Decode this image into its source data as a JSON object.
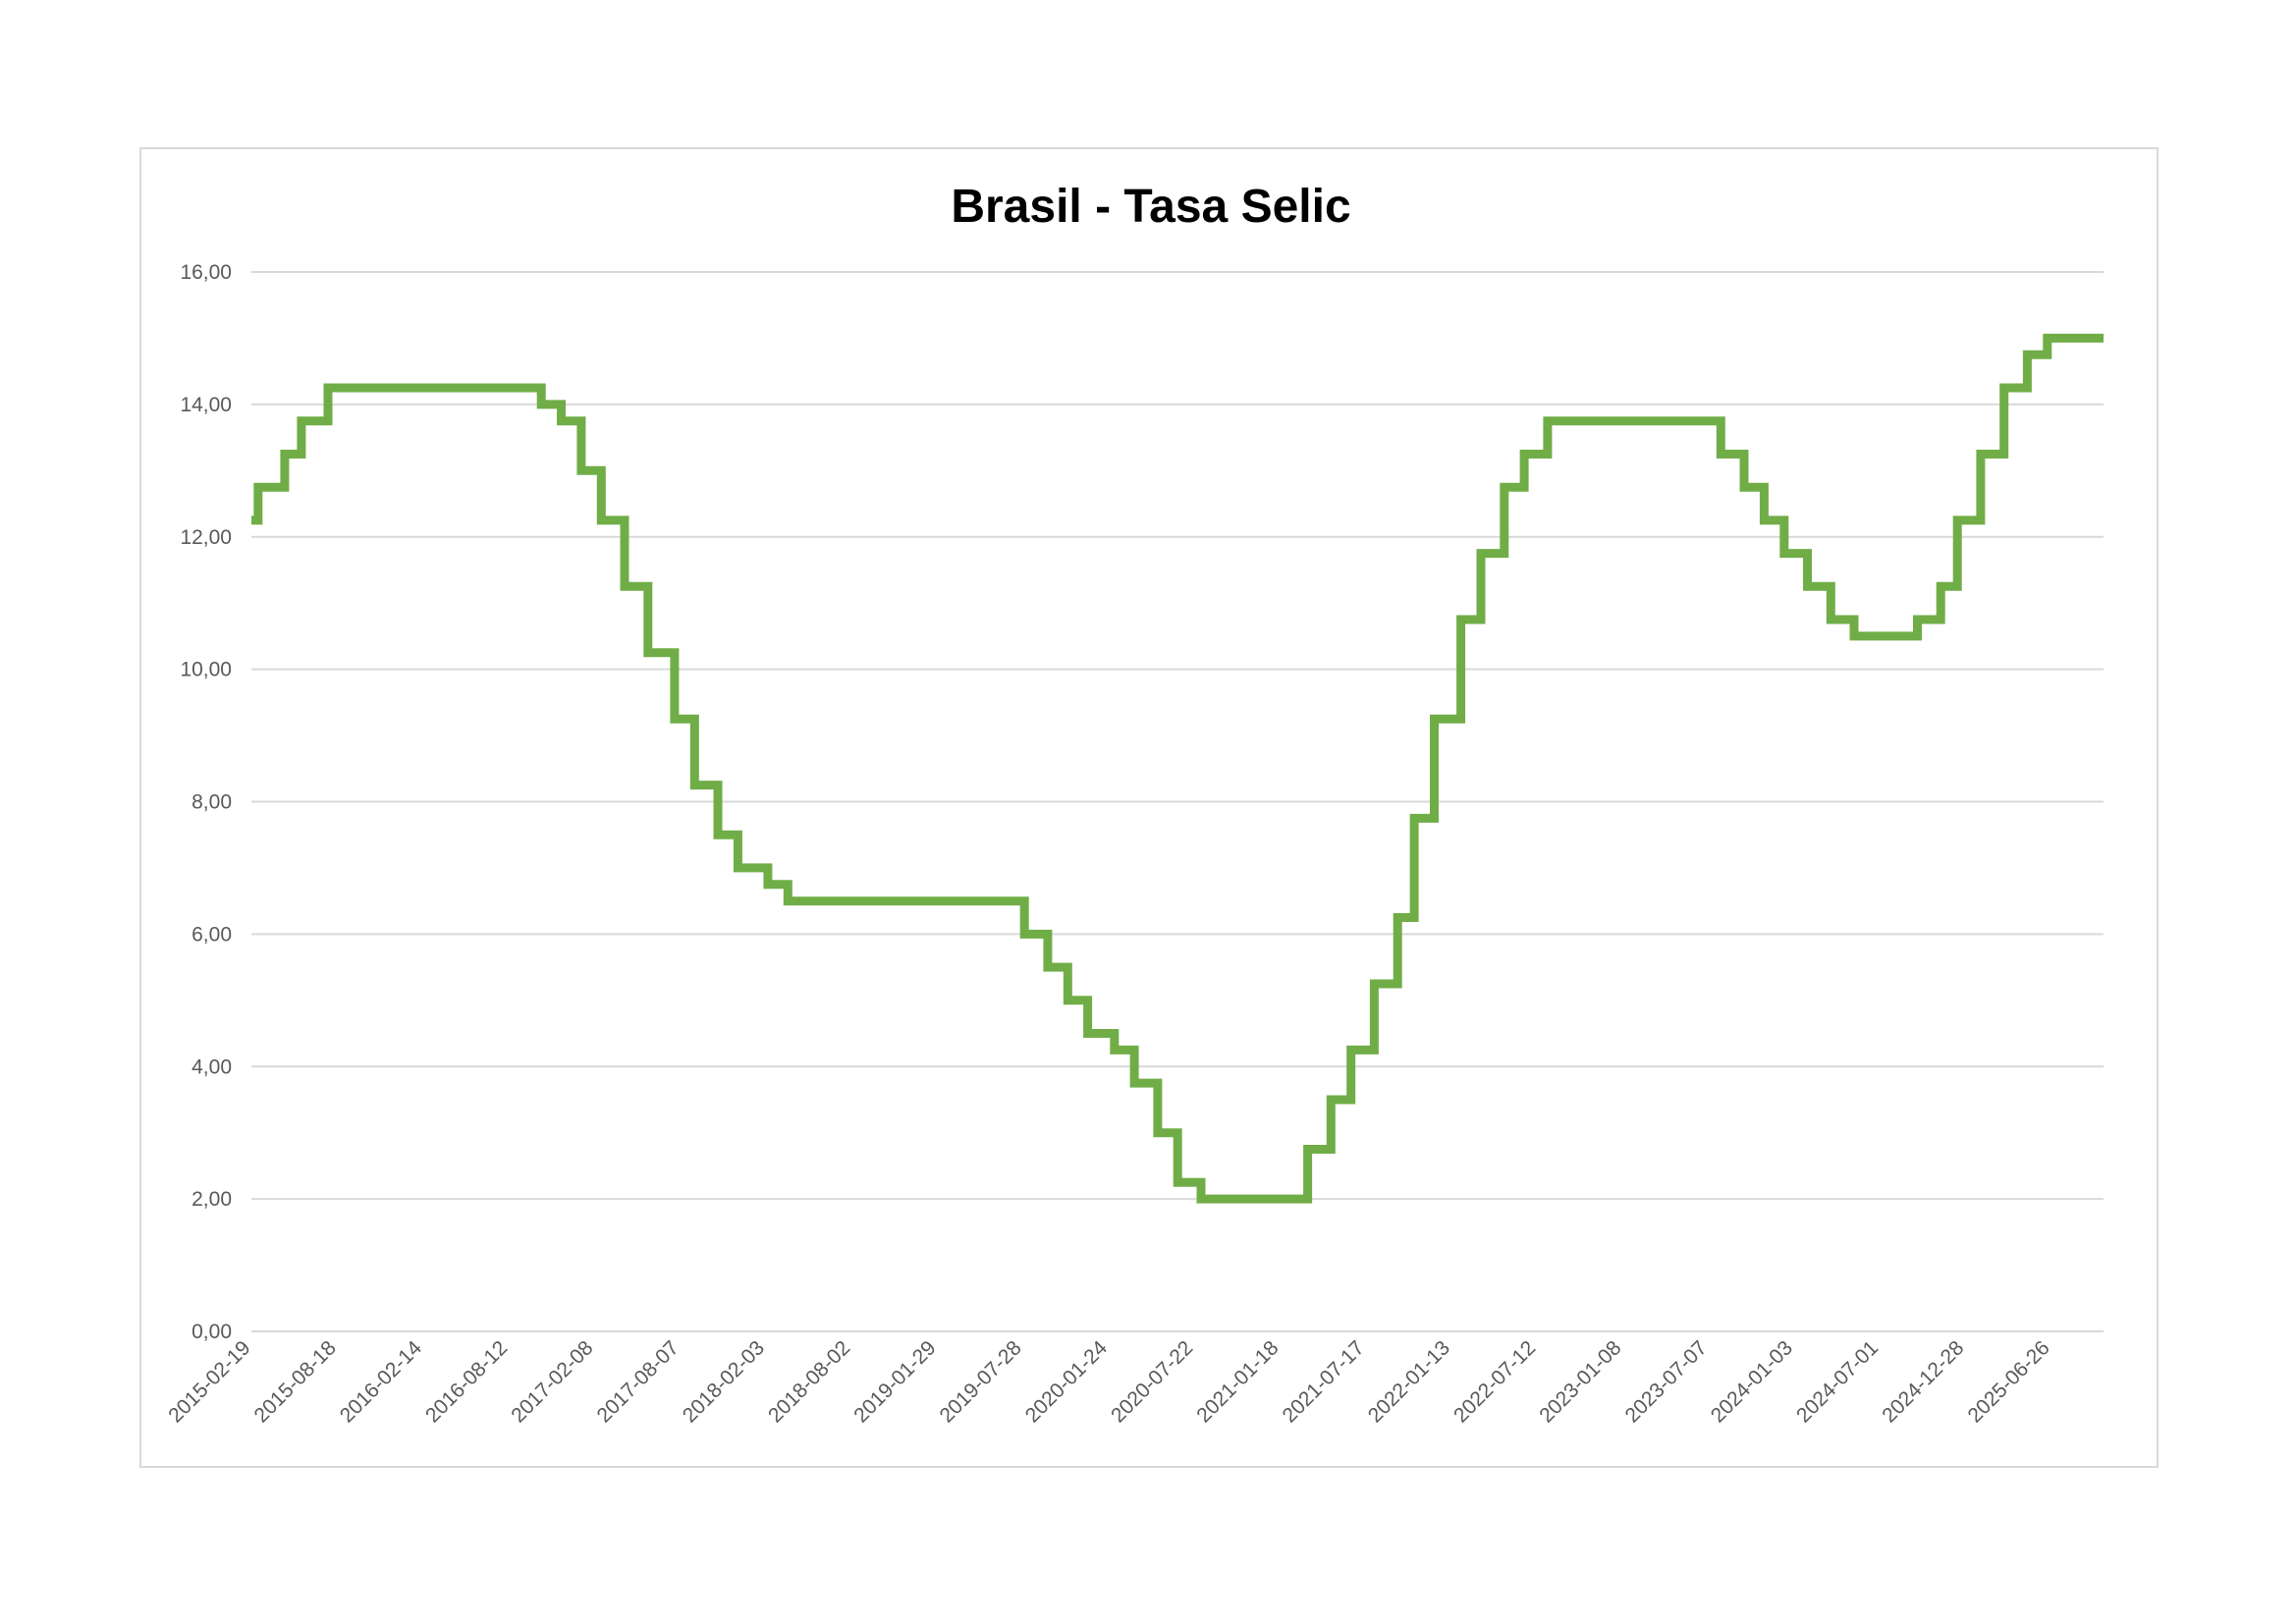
{
  "chart_data": {
    "type": "line",
    "title": "Brasil - Tasa Selic",
    "xlabel": "",
    "ylabel": "",
    "x_range": [
      "2015-02-19",
      "2025-10-15"
    ],
    "ylim": [
      0,
      16
    ],
    "y_ticks": [
      "0,00",
      "2,00",
      "4,00",
      "6,00",
      "8,00",
      "10,00",
      "12,00",
      "14,00",
      "16,00"
    ],
    "x_ticks": [
      "2015-02-19",
      "2015-08-18",
      "2016-02-14",
      "2016-08-12",
      "2017-02-08",
      "2017-08-07",
      "2018-02-03",
      "2018-08-02",
      "2019-01-29",
      "2019-07-28",
      "2020-01-24",
      "2020-07-22",
      "2021-01-18",
      "2021-07-17",
      "2022-01-13",
      "2022-07-12",
      "2023-01-08",
      "2023-07-07",
      "2024-01-03",
      "2024-07-01",
      "2024-12-28",
      "2025-06-26"
    ],
    "grid": true,
    "legend": "none",
    "step": true,
    "series": [
      {
        "color": "#70ad47",
        "points": [
          [
            "2015-02-19",
            12.25
          ],
          [
            "2015-03-05",
            12.75
          ],
          [
            "2015-04-30",
            13.25
          ],
          [
            "2015-06-04",
            13.75
          ],
          [
            "2015-07-30",
            14.25
          ],
          [
            "2016-10-20",
            14.0
          ],
          [
            "2016-12-01",
            13.75
          ],
          [
            "2017-01-12",
            13.0
          ],
          [
            "2017-02-23",
            12.25
          ],
          [
            "2017-04-13",
            11.25
          ],
          [
            "2017-06-01",
            10.25
          ],
          [
            "2017-07-27",
            9.25
          ],
          [
            "2017-09-07",
            8.25
          ],
          [
            "2017-10-26",
            7.5
          ],
          [
            "2017-12-07",
            7.0
          ],
          [
            "2018-02-08",
            6.75
          ],
          [
            "2018-03-22",
            6.5
          ],
          [
            "2019-08-01",
            6.0
          ],
          [
            "2019-09-19",
            5.5
          ],
          [
            "2019-10-31",
            5.0
          ],
          [
            "2019-12-12",
            4.5
          ],
          [
            "2020-02-06",
            4.25
          ],
          [
            "2020-03-19",
            3.75
          ],
          [
            "2020-05-07",
            3.0
          ],
          [
            "2020-06-18",
            2.25
          ],
          [
            "2020-08-06",
            2.0
          ],
          [
            "2021-03-18",
            2.75
          ],
          [
            "2021-05-06",
            3.5
          ],
          [
            "2021-06-17",
            4.25
          ],
          [
            "2021-08-05",
            5.25
          ],
          [
            "2021-09-23",
            6.25
          ],
          [
            "2021-10-28",
            7.75
          ],
          [
            "2021-12-09",
            9.25
          ],
          [
            "2022-02-03",
            10.75
          ],
          [
            "2022-03-17",
            11.75
          ],
          [
            "2022-05-05",
            12.75
          ],
          [
            "2022-06-16",
            13.25
          ],
          [
            "2022-08-04",
            13.75
          ],
          [
            "2023-08-03",
            13.25
          ],
          [
            "2023-09-21",
            12.75
          ],
          [
            "2023-11-02",
            12.25
          ],
          [
            "2023-12-14",
            11.75
          ],
          [
            "2024-02-01",
            11.25
          ],
          [
            "2024-03-21",
            10.75
          ],
          [
            "2024-05-09",
            10.5
          ],
          [
            "2024-09-19",
            10.75
          ],
          [
            "2024-11-07",
            11.25
          ],
          [
            "2024-12-12",
            12.25
          ],
          [
            "2025-01-30",
            13.25
          ],
          [
            "2025-03-20",
            14.25
          ],
          [
            "2025-05-08",
            14.75
          ],
          [
            "2025-06-19",
            15.0
          ],
          [
            "2025-10-15",
            15.0
          ]
        ]
      }
    ]
  }
}
